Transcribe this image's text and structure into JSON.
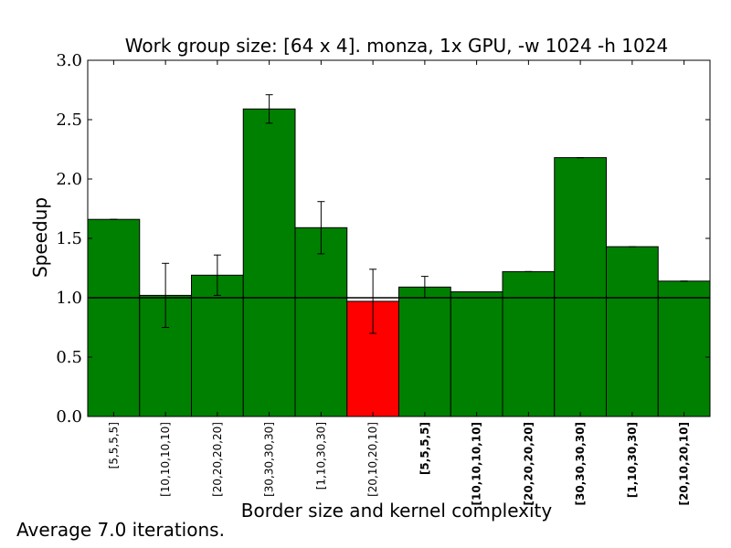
{
  "chart_data": {
    "type": "bar",
    "title": "Work group size: [64 x 4]. monza, 1x GPU, -w 1024 -h 1024",
    "xlabel": "Border size and kernel complexity",
    "ylabel": "Speedup",
    "ylim": [
      0.0,
      3.0
    ],
    "yticks": [
      "0.0",
      "0.5",
      "1.0",
      "1.5",
      "2.0",
      "2.5",
      "3.0"
    ],
    "baseline": 1.0,
    "categories": [
      "[5,5,5,5]",
      "[10,10,10,10]",
      "[20,20,20,20]",
      "[30,30,30,30]",
      "[1,10,30,30]",
      "[20,10,20,10]",
      "[5,5,5,5]",
      "[10,10,10,10]",
      "[20,20,20,20]",
      "[30,30,30,30]",
      "[1,10,30,30]",
      "[20,10,20,10]"
    ],
    "bold_labels": [
      false,
      false,
      false,
      false,
      false,
      false,
      true,
      true,
      true,
      true,
      true,
      true
    ],
    "values": [
      1.66,
      1.02,
      1.19,
      2.59,
      1.59,
      0.97,
      1.09,
      1.05,
      1.22,
      2.18,
      1.43,
      1.14
    ],
    "errors": [
      0.0,
      0.27,
      0.17,
      0.12,
      0.22,
      0.27,
      0.09,
      0.0,
      0.0,
      0.0,
      0.0,
      0.0
    ],
    "colors": [
      "#008000",
      "#008000",
      "#008000",
      "#008000",
      "#008000",
      "#ff0000",
      "#008000",
      "#008000",
      "#008000",
      "#008000",
      "#008000",
      "#008000"
    ],
    "grid": false,
    "legend": null
  },
  "footer": {
    "note": "Average 7.0 iterations."
  }
}
